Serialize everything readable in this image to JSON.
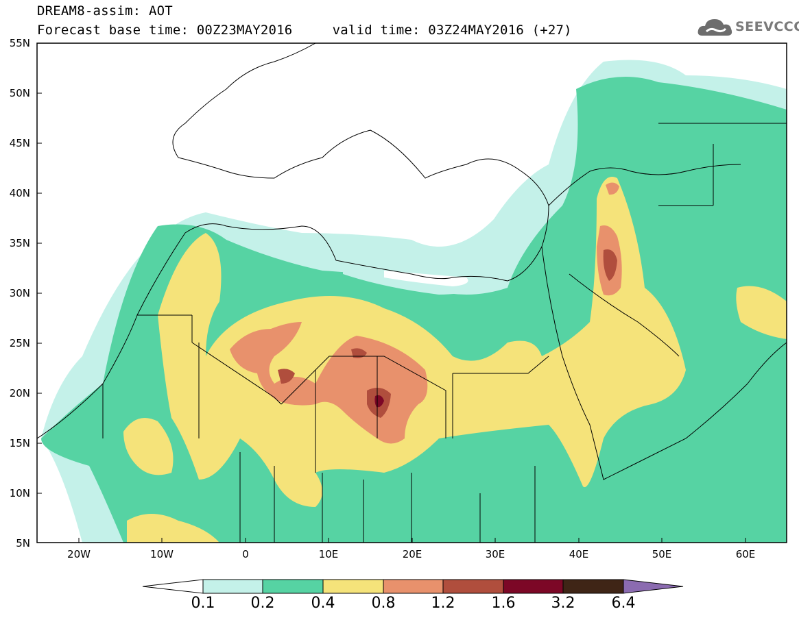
{
  "title": {
    "line1": "DREAM8-assim: AOT",
    "line2": "Forecast base time: 00Z23MAY2016     valid time: 03Z24MAY2016 (+27)"
  },
  "logo": {
    "text": "SEEVCCC",
    "icon": "cloud-icon"
  },
  "axes": {
    "lat_labels": [
      "55N",
      "50N",
      "45N",
      "40N",
      "35N",
      "30N",
      "25N",
      "20N",
      "15N",
      "10N",
      "5N"
    ],
    "lon_labels": [
      "20W",
      "10W",
      "0",
      "10E",
      "20E",
      "30E",
      "40E",
      "50E",
      "60E"
    ],
    "lon_range": [
      -25,
      65
    ],
    "lat_range": [
      5,
      55
    ]
  },
  "legend": {
    "labels": [
      "0.1",
      "0.2",
      "0.4",
      "0.8",
      "1.2",
      "1.6",
      "3.2",
      "6.4"
    ],
    "colors": [
      "#ffffff",
      "#c4f1e9",
      "#56d3a3",
      "#f5e37a",
      "#e8916c",
      "#b04e3d",
      "#7c0726",
      "#3f2516",
      "#8b6bb0"
    ]
  },
  "palette": {
    "c01": "#c4f1e9",
    "c02": "#56d3a3",
    "c04": "#f5e37a",
    "c08": "#e8916c",
    "c12": "#b04e3d",
    "c16": "#7c0726"
  }
}
